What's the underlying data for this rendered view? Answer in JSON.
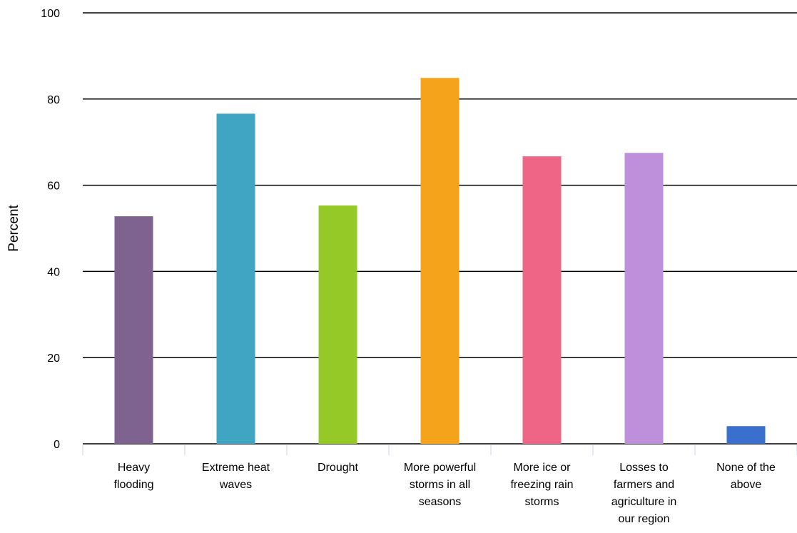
{
  "chart_data": {
    "type": "bar",
    "title": "",
    "xlabel": "",
    "ylabel": "Percent",
    "ylim": [
      0,
      100
    ],
    "yticks": [
      0,
      20,
      40,
      60,
      80,
      100
    ],
    "grid": true,
    "categories": [
      [
        "Heavy",
        "flooding"
      ],
      [
        "Extreme heat",
        "waves"
      ],
      [
        "Drought"
      ],
      [
        "More powerful",
        "storms in all",
        "seasons"
      ],
      [
        "More ice or",
        "freezing rain",
        "storms"
      ],
      [
        "Losses to",
        "farmers and",
        "agriculture in",
        "our region"
      ],
      [
        "None of the",
        "above"
      ]
    ],
    "values": [
      52.8,
      76.6,
      55.3,
      84.9,
      66.7,
      67.5,
      4.1
    ],
    "colors": [
      "#7e6290",
      "#40a4c3",
      "#95c928",
      "#f4a31b",
      "#ef6585",
      "#be8fda",
      "#3a6fcd"
    ]
  }
}
